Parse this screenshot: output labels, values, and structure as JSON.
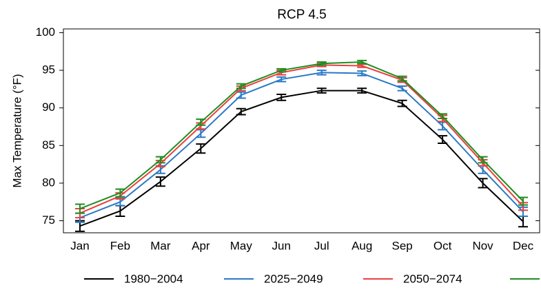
{
  "chart_data": {
    "type": "line",
    "title": "RCP 4.5",
    "y_label": "Max Temperature (°F)",
    "categories": [
      "Jan",
      "Feb",
      "Mar",
      "Apr",
      "May",
      "Jun",
      "Jul",
      "Aug",
      "Sep",
      "Oct",
      "Nov",
      "Dec"
    ],
    "ylim": [
      73.4,
      100.5
    ],
    "yticks": [
      75,
      80,
      85,
      90,
      95,
      100
    ],
    "grid": false,
    "legend": "bottom",
    "series": [
      {
        "name": "1980−2004",
        "color": "#000000",
        "values": [
          74.3,
          76.3,
          80.2,
          84.6,
          89.5,
          91.4,
          92.3,
          92.3,
          90.6,
          85.8,
          80.0,
          74.9
        ],
        "errors": [
          0.7,
          0.7,
          0.6,
          0.6,
          0.4,
          0.4,
          0.3,
          0.3,
          0.4,
          0.5,
          0.6,
          0.7
        ]
      },
      {
        "name": "2025−2049",
        "color": "#2a78c6",
        "values": [
          75.4,
          77.5,
          81.8,
          86.6,
          91.7,
          93.8,
          94.7,
          94.6,
          92.6,
          87.6,
          81.8,
          76.2
        ],
        "errors": [
          0.6,
          0.5,
          0.5,
          0.5,
          0.4,
          0.3,
          0.3,
          0.3,
          0.3,
          0.5,
          0.5,
          0.6
        ]
      },
      {
        "name": "2050−2074",
        "color": "#e8413f",
        "values": [
          76.0,
          78.3,
          82.6,
          87.6,
          92.6,
          94.7,
          95.7,
          95.6,
          93.7,
          88.6,
          82.7,
          76.9
        ],
        "errors": [
          0.6,
          0.4,
          0.4,
          0.4,
          0.3,
          0.3,
          0.2,
          0.2,
          0.3,
          0.4,
          0.4,
          0.5
        ]
      },
      {
        "color": "#1f8c1f",
        "values": [
          76.6,
          78.7,
          83.1,
          88.1,
          92.9,
          95.0,
          95.9,
          96.1,
          93.9,
          88.9,
          83.1,
          77.6
        ],
        "errors": [
          0.6,
          0.5,
          0.4,
          0.4,
          0.3,
          0.2,
          0.2,
          0.2,
          0.3,
          0.3,
          0.4,
          0.5
        ]
      }
    ]
  }
}
